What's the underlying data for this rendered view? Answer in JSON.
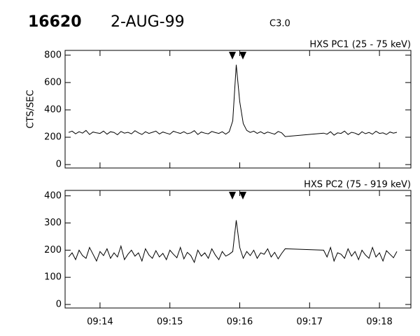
{
  "header": {
    "id": "16620",
    "date": "2-AUG-99",
    "class": "C3.0"
  },
  "chart_data": [
    {
      "type": "line",
      "title": "HXS PC1 (25 - 75 keV)",
      "y_label": "CTS/SEC",
      "x": [
        553.55,
        553.6,
        553.65,
        553.7,
        553.75,
        553.8,
        553.85,
        553.9,
        553.95,
        554.0,
        554.05,
        554.1,
        554.15,
        554.2,
        554.25,
        554.3,
        554.35,
        554.4,
        554.45,
        554.5,
        554.55,
        554.6,
        554.65,
        554.7,
        554.75,
        554.8,
        554.85,
        554.9,
        554.95,
        555.0,
        555.05,
        555.1,
        555.15,
        555.2,
        555.25,
        555.3,
        555.35,
        555.4,
        555.45,
        555.5,
        555.55,
        555.6,
        555.65,
        555.7,
        555.75,
        555.8,
        555.85,
        555.9,
        555.95,
        556.0,
        556.05,
        556.1,
        556.15,
        556.2,
        556.25,
        556.3,
        556.35,
        556.4,
        556.45,
        556.5,
        556.55,
        556.6,
        556.65,
        557.2,
        557.25,
        557.3,
        557.35,
        557.4,
        557.45,
        557.5,
        557.55,
        557.6,
        557.65,
        557.7,
        557.75,
        557.8,
        557.85,
        557.9,
        557.95,
        558.0,
        558.05,
        558.1,
        558.15,
        558.2,
        558.25
      ],
      "series": [
        {
          "name": "HXS PC1",
          "color": "#000000",
          "values": [
            235,
            245,
            225,
            240,
            230,
            250,
            220,
            238,
            232,
            228,
            245,
            222,
            240,
            235,
            218,
            242,
            230,
            236,
            225,
            248,
            232,
            220,
            240,
            228,
            236,
            245,
            224,
            238,
            230,
            222,
            244,
            235,
            228,
            240,
            226,
            232,
            248,
            220,
            238,
            230,
            225,
            242,
            234,
            228,
            240,
            222,
            240,
            320,
            730,
            460,
            300,
            250,
            235,
            245,
            228,
            240,
            226,
            238,
            230,
            222,
            242,
            232,
            205,
            230,
            222,
            240,
            215,
            232,
            228,
            245,
            220,
            236,
            230,
            218,
            240,
            226,
            235,
            222,
            244,
            228,
            232,
            220,
            238,
            230,
            236
          ]
        }
      ],
      "xlim": [
        553.5,
        558.45
      ],
      "xticks": [
        554,
        555,
        556,
        557,
        558
      ],
      "ylim": [
        -25,
        835
      ],
      "yticks": [
        0,
        200,
        400,
        600,
        800
      ]
    },
    {
      "type": "line",
      "title": "HXS PC2 (75 - 919 keV)",
      "x": [
        553.55,
        553.6,
        553.65,
        553.7,
        553.75,
        553.8,
        553.85,
        553.9,
        553.95,
        554.0,
        554.05,
        554.1,
        554.15,
        554.2,
        554.25,
        554.3,
        554.35,
        554.4,
        554.45,
        554.5,
        554.55,
        554.6,
        554.65,
        554.7,
        554.75,
        554.8,
        554.85,
        554.9,
        554.95,
        555.0,
        555.05,
        555.1,
        555.15,
        555.2,
        555.25,
        555.3,
        555.35,
        555.4,
        555.45,
        555.5,
        555.55,
        555.6,
        555.65,
        555.7,
        555.75,
        555.8,
        555.85,
        555.9,
        555.95,
        556.0,
        556.05,
        556.1,
        556.15,
        556.2,
        556.25,
        556.3,
        556.35,
        556.4,
        556.45,
        556.5,
        556.55,
        556.6,
        556.65,
        557.2,
        557.25,
        557.3,
        557.35,
        557.4,
        557.45,
        557.5,
        557.55,
        557.6,
        557.65,
        557.7,
        557.75,
        557.8,
        557.85,
        557.9,
        557.95,
        558.0,
        558.05,
        558.1,
        558.15,
        558.2,
        558.25
      ],
      "series": [
        {
          "name": "HXS PC2",
          "color": "#000000",
          "values": [
            175,
            190,
            165,
            200,
            180,
            170,
            210,
            185,
            160,
            195,
            180,
            205,
            170,
            190,
            175,
            215,
            165,
            185,
            200,
            178,
            190,
            160,
            205,
            182,
            170,
            198,
            175,
            188,
            165,
            200,
            185,
            172,
            210,
            168,
            192,
            180,
            155,
            200,
            178,
            190,
            170,
            205,
            182,
            165,
            195,
            178,
            185,
            195,
            310,
            210,
            170,
            195,
            180,
            200,
            170,
            190,
            185,
            205,
            175,
            192,
            168,
            188,
            205,
            200,
            175,
            210,
            160,
            190,
            185,
            170,
            205,
            178,
            195,
            165,
            200,
            182,
            170,
            210,
            175,
            190,
            160,
            198,
            185,
            172,
            195
          ]
        }
      ],
      "xlim": [
        553.5,
        558.45
      ],
      "xticks": [
        {
          "value": 554,
          "label": "09:14"
        },
        {
          "value": 555,
          "label": "09:15"
        },
        {
          "value": 556,
          "label": "09:16"
        },
        {
          "value": 557,
          "label": "09:17"
        },
        {
          "value": 558,
          "label": "09:18"
        }
      ],
      "ylim": [
        -13,
        420
      ],
      "yticks": [
        0,
        100,
        200,
        300,
        400
      ]
    }
  ]
}
